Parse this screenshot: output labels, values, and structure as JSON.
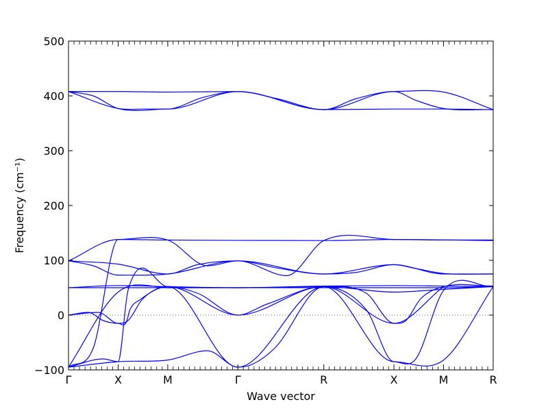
{
  "chart_data": {
    "type": "line",
    "title": "",
    "xlabel": "Wave vector",
    "ylabel": "Frequency (cm⁻¹)",
    "ylim": [
      -100,
      500
    ],
    "yticks": [
      -100,
      0,
      100,
      200,
      300,
      400,
      500
    ],
    "ytick_labels": [
      "−100",
      "0",
      "100",
      "200",
      "300",
      "400",
      "500"
    ],
    "high_symmetry_points": [
      {
        "label": "Γ",
        "x": 0
      },
      {
        "label": "X",
        "x": 0.5
      },
      {
        "label": "M",
        "x": 1.0
      },
      {
        "label": "Γ",
        "x": 1.707
      },
      {
        "label": "R",
        "x": 2.573
      },
      {
        "label": "X",
        "x": 3.28
      },
      {
        "label": "M",
        "x": 3.78
      },
      {
        "label": "R",
        "x": 4.28
      }
    ],
    "xlim": [
      0,
      4.28
    ],
    "reference_line": {
      "y": 0,
      "style": "dotted"
    },
    "line_color": "#0000ff",
    "series": [
      {
        "values": [
          [
            0,
            408
          ],
          [
            0.5,
            408
          ],
          [
            1.0,
            407
          ],
          [
            1.707,
            408
          ],
          [
            2.573,
            375
          ],
          [
            3.28,
            408
          ],
          [
            3.78,
            407
          ],
          [
            4.28,
            375
          ]
        ]
      },
      {
        "values": [
          [
            0,
            408
          ],
          [
            0.25,
            400
          ],
          [
            0.5,
            377
          ],
          [
            1.0,
            376
          ],
          [
            1.35,
            397
          ],
          [
            1.707,
            408
          ],
          [
            2.1,
            395
          ],
          [
            2.573,
            375
          ],
          [
            3.28,
            376
          ],
          [
            3.78,
            376
          ],
          [
            4.28,
            375
          ]
        ]
      },
      {
        "values": [
          [
            0,
            408
          ],
          [
            0.5,
            377
          ],
          [
            0.75,
            376
          ],
          [
            1.0,
            376
          ],
          [
            1.707,
            408
          ],
          [
            2.573,
            375
          ],
          [
            2.9,
            395
          ],
          [
            3.28,
            408
          ],
          [
            3.5,
            392
          ],
          [
            3.78,
            377
          ],
          [
            4.28,
            375
          ]
        ]
      },
      {
        "values": [
          [
            0,
            99
          ],
          [
            0.5,
            93
          ],
          [
            1.0,
            75
          ],
          [
            1.3,
            92
          ],
          [
            1.707,
            99
          ],
          [
            2.1,
            86
          ],
          [
            2.573,
            75
          ],
          [
            2.9,
            78
          ],
          [
            3.28,
            92
          ],
          [
            3.78,
            75
          ],
          [
            4.28,
            75
          ]
        ]
      },
      {
        "values": [
          [
            0,
            99
          ],
          [
            0.25,
            90
          ],
          [
            0.5,
            73
          ],
          [
            1.0,
            75
          ],
          [
            1.707,
            99
          ],
          [
            2.573,
            75
          ],
          [
            3.28,
            92
          ],
          [
            3.5,
            85
          ],
          [
            3.78,
            76
          ],
          [
            4.28,
            75
          ]
        ]
      },
      {
        "values": [
          [
            0,
            99
          ],
          [
            0.5,
            138
          ],
          [
            1.0,
            137
          ],
          [
            1.4,
            90
          ],
          [
            1.707,
            99
          ],
          [
            2.2,
            72
          ],
          [
            2.573,
            136
          ],
          [
            3.28,
            138
          ],
          [
            3.78,
            137
          ],
          [
            4.28,
            137
          ]
        ]
      },
      {
        "values": [
          [
            0,
            -95
          ],
          [
            0.25,
            -60
          ],
          [
            0.5,
            138
          ],
          [
            1.0,
            137
          ],
          [
            2.573,
            136
          ],
          [
            3.28,
            138
          ],
          [
            4.28,
            136
          ]
        ]
      },
      {
        "values": [
          [
            0,
            50
          ],
          [
            0.5,
            54
          ],
          [
            1.0,
            52
          ],
          [
            1.707,
            50
          ],
          [
            2.573,
            53
          ],
          [
            3.28,
            54
          ],
          [
            3.78,
            53
          ],
          [
            4.28,
            52
          ]
        ]
      },
      {
        "values": [
          [
            0,
            50
          ],
          [
            0.5,
            50
          ],
          [
            1.0,
            50
          ],
          [
            1.707,
            50
          ],
          [
            2.573,
            50
          ],
          [
            3.28,
            50
          ],
          [
            3.78,
            50
          ],
          [
            4.28,
            52
          ]
        ]
      },
      {
        "values": [
          [
            0,
            0
          ],
          [
            0.2,
            5
          ],
          [
            0.35,
            -10
          ],
          [
            0.5,
            -15
          ],
          [
            0.6,
            -10
          ],
          [
            0.75,
            30
          ],
          [
            1.0,
            52
          ],
          [
            1.3,
            40
          ],
          [
            1.707,
            0
          ],
          [
            2.0,
            20
          ],
          [
            2.573,
            52
          ],
          [
            3.0,
            40
          ],
          [
            3.28,
            -15
          ],
          [
            3.4,
            -10
          ],
          [
            3.55,
            30
          ],
          [
            3.78,
            52
          ],
          [
            4.28,
            53
          ]
        ]
      },
      {
        "values": [
          [
            0,
            0
          ],
          [
            0.3,
            5
          ],
          [
            0.5,
            -15
          ],
          [
            0.58,
            -14
          ],
          [
            0.62,
            10
          ],
          [
            0.72,
            28
          ],
          [
            1.0,
            52
          ],
          [
            1.707,
            0
          ],
          [
            2.573,
            52
          ],
          [
            3.28,
            -15
          ],
          [
            3.78,
            52
          ]
        ]
      },
      {
        "values": [
          [
            0,
            -95
          ],
          [
            0.5,
            -85
          ],
          [
            1.0,
            -82
          ],
          [
            1.4,
            -65
          ],
          [
            1.707,
            -95
          ],
          [
            1.85,
            -90
          ],
          [
            2.08,
            -60
          ],
          [
            2.573,
            52
          ],
          [
            3.0,
            10
          ],
          [
            3.28,
            -85
          ],
          [
            3.78,
            -82
          ],
          [
            4.28,
            52
          ]
        ]
      },
      {
        "values": [
          [
            0,
            -95
          ],
          [
            0.35,
            -80
          ],
          [
            0.5,
            -85
          ],
          [
            0.6,
            45
          ],
          [
            1.0,
            52
          ],
          [
            1.707,
            -95
          ],
          [
            2.573,
            52
          ],
          [
            3.28,
            -85
          ],
          [
            3.5,
            -80
          ],
          [
            3.78,
            45
          ],
          [
            4.28,
            52
          ]
        ]
      },
      {
        "values": [
          [
            0,
            -95
          ],
          [
            0.5,
            42
          ],
          [
            1.0,
            50
          ],
          [
            1.707,
            50
          ],
          [
            2.573,
            52
          ],
          [
            3.28,
            42
          ],
          [
            3.78,
            47
          ],
          [
            4.28,
            52
          ]
        ]
      }
    ]
  }
}
